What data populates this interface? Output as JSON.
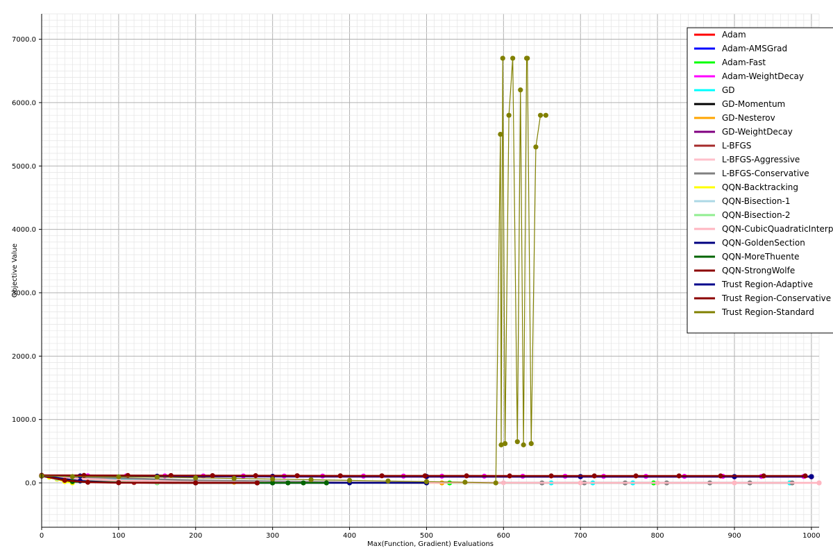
{
  "chart_data": {
    "type": "line",
    "title": "",
    "xlabel": "Max(Function, Gradient) Evaluations",
    "ylabel": "Objective Value",
    "xlim": [
      0,
      1010
    ],
    "ylim": [
      -700,
      7400
    ],
    "xticks": [
      0,
      100,
      200,
      300,
      400,
      500,
      600,
      700,
      800,
      900,
      1000
    ],
    "xtick_labels": [
      "0",
      "100",
      "200",
      "300",
      "400",
      "500",
      "600",
      "700",
      "800",
      "900",
      "1000"
    ],
    "yticks": [
      0,
      1000,
      2000,
      3000,
      4000,
      5000,
      6000,
      7000
    ],
    "ytick_labels": [
      "0.0",
      "1000.0",
      "2000.0",
      "3000.0",
      "4000.0",
      "5000.0",
      "6000.0",
      "7000.0"
    ],
    "grid": true,
    "legend_position": "top-right",
    "series": [
      {
        "name": "Adam",
        "color": "#ff0000",
        "x": [
          0,
          50,
          150,
          300,
          500,
          700,
          900,
          1000
        ],
        "y": [
          115,
          110,
          105,
          102,
          100,
          100,
          100,
          100
        ]
      },
      {
        "name": "Adam-AMSGrad",
        "color": "#0000ff",
        "x": [
          0,
          50,
          150,
          300,
          500,
          700,
          900,
          1000
        ],
        "y": [
          112,
          108,
          104,
          101,
          99,
          98,
          98,
          98
        ]
      },
      {
        "name": "Adam-Fast",
        "color": "#00ff00",
        "x": [
          0,
          100,
          200,
          300,
          400,
          500,
          530,
          795
        ],
        "y": [
          110,
          60,
          30,
          15,
          8,
          4,
          0,
          0
        ]
      },
      {
        "name": "Adam-WeightDecay",
        "color": "#ff00ff",
        "x": [
          0,
          60,
          110,
          160,
          210,
          262,
          315,
          365,
          418,
          470,
          520,
          575,
          625,
          680,
          730,
          785,
          835,
          885,
          935,
          990
        ],
        "y": [
          115,
          112,
          110,
          110,
          109,
          109,
          108,
          108,
          107,
          107,
          106,
          106,
          105,
          105,
          104,
          104,
          103,
          103,
          102,
          102
        ]
      },
      {
        "name": "GD",
        "color": "#00ffff",
        "x": [
          0,
          50,
          100,
          200,
          400,
          662,
          716,
          768,
          972
        ],
        "y": [
          110,
          80,
          50,
          20,
          5,
          0,
          0,
          0,
          0
        ]
      },
      {
        "name": "GD-Momentum",
        "color": "#000000",
        "x": [
          0,
          50,
          150,
          300,
          500,
          700,
          900,
          1000
        ],
        "y": [
          108,
          106,
          104,
          102,
          100,
          99,
          98,
          98
        ]
      },
      {
        "name": "GD-Nesterov",
        "color": "#ffa500",
        "x": [
          0,
          30,
          80,
          150,
          250,
          400,
          520
        ],
        "y": [
          110,
          70,
          40,
          20,
          10,
          5,
          0
        ]
      },
      {
        "name": "GD-WeightDecay",
        "color": "#800080",
        "x": [
          0,
          50,
          150,
          300,
          500,
          700,
          900,
          1000
        ],
        "y": [
          106,
          104,
          102,
          100,
          98,
          97,
          96,
          96
        ]
      },
      {
        "name": "L-BFGS",
        "color": "#a52a2a",
        "x": [
          0,
          20,
          60,
          120,
          200,
          280
        ],
        "y": [
          110,
          60,
          20,
          5,
          1,
          0
        ]
      },
      {
        "name": "L-BFGS-Aggressive",
        "color": "#ffc0cb",
        "x": [
          0,
          100,
          300,
          600,
          800,
          1010
        ],
        "y": [
          110,
          40,
          10,
          2,
          0,
          0
        ]
      },
      {
        "name": "L-BFGS-Conservative",
        "color": "#808080",
        "x": [
          0,
          200,
          400,
          650,
          705,
          758,
          812,
          868,
          920,
          975
        ],
        "y": [
          110,
          40,
          10,
          0,
          0,
          0,
          0,
          0,
          0,
          0
        ]
      },
      {
        "name": "QQN-Backtracking",
        "color": "#ffff00",
        "x": [
          0,
          10,
          20,
          30,
          40
        ],
        "y": [
          110,
          90,
          60,
          20,
          0
        ]
      },
      {
        "name": "QQN-Bisection-1",
        "color": "#add8e6",
        "x": [
          0,
          20,
          50,
          100,
          150
        ],
        "y": [
          110,
          70,
          30,
          10,
          0
        ]
      },
      {
        "name": "QQN-Bisection-2",
        "color": "#90ee90",
        "x": [
          0,
          20,
          50,
          100,
          150
        ],
        "y": [
          110,
          75,
          35,
          12,
          0
        ]
      },
      {
        "name": "QQN-CubicQuadraticInterpolation",
        "color": "#ffb6c1",
        "x": [
          0,
          50,
          150,
          300,
          500,
          700,
          900,
          1010
        ],
        "y": [
          110,
          60,
          20,
          8,
          2,
          0,
          0,
          0
        ]
      },
      {
        "name": "QQN-GoldenSection",
        "color": "#000080",
        "x": [
          0,
          50,
          100,
          200,
          300,
          400,
          500
        ],
        "y": [
          110,
          30,
          5,
          0,
          0,
          0,
          0
        ]
      },
      {
        "name": "QQN-MoreThuente",
        "color": "#006400",
        "x": [
          0,
          40,
          100,
          200,
          280,
          300,
          320,
          340,
          370
        ],
        "y": [
          110,
          20,
          5,
          0,
          0,
          0,
          0,
          0,
          0
        ]
      },
      {
        "name": "QQN-StrongWolfe",
        "color": "#8b0000",
        "x": [
          0,
          30,
          60,
          100,
          200,
          280
        ],
        "y": [
          110,
          40,
          10,
          2,
          0,
          0
        ]
      },
      {
        "name": "Trust Region-Adaptive",
        "color": "#00008b",
        "x": [
          0,
          50,
          150,
          300,
          500,
          700,
          900,
          1000
        ],
        "y": [
          110,
          108,
          106,
          104,
          102,
          100,
          100,
          100
        ]
      },
      {
        "name": "Trust Region-Conservative",
        "color": "#8b0000",
        "x": [
          0,
          55,
          112,
          168,
          222,
          278,
          332,
          388,
          442,
          498,
          552,
          608,
          662,
          718,
          772,
          828,
          882,
          938,
          992
        ],
        "y": [
          120,
          118,
          117,
          116,
          115,
          114,
          113,
          112,
          112,
          111,
          111,
          110,
          110,
          110,
          110,
          110,
          110,
          110,
          110
        ]
      },
      {
        "name": "Trust Region-Standard",
        "color": "#808000",
        "x": [
          0,
          40,
          100,
          150,
          200,
          250,
          300,
          350,
          400,
          450,
          500,
          550,
          590,
          596,
          597,
          599,
          602,
          607,
          612,
          618,
          622,
          626,
          630,
          631,
          636,
          642,
          648,
          655
        ],
        "y": [
          110,
          100,
          95,
          90,
          80,
          70,
          60,
          50,
          40,
          30,
          20,
          10,
          0,
          5500,
          600,
          6700,
          620,
          5800,
          6700,
          650,
          6200,
          600,
          6700,
          6700,
          620,
          5300,
          5800,
          5800
        ]
      }
    ]
  }
}
